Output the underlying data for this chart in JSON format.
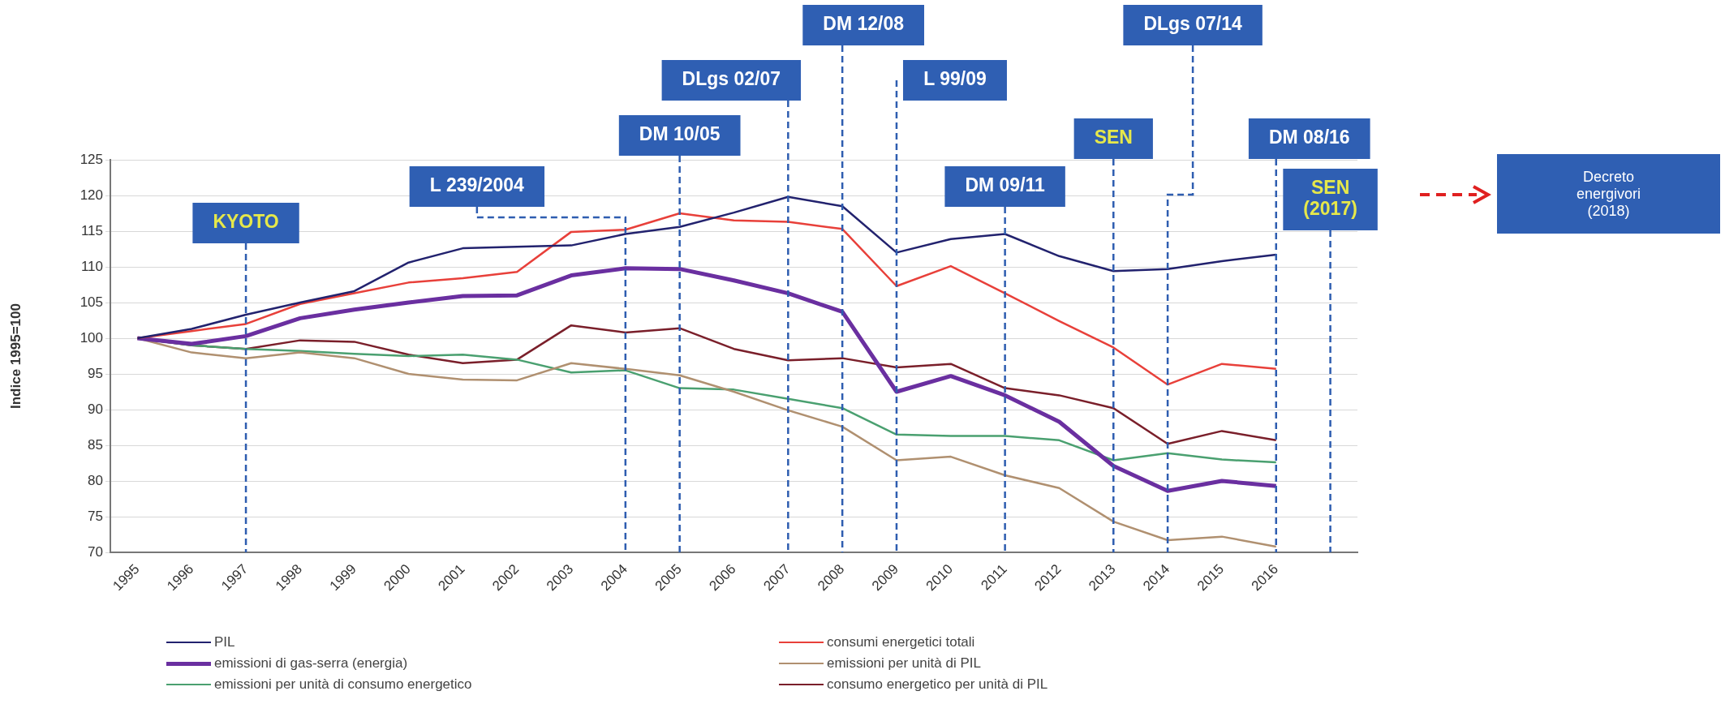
{
  "chart_data": {
    "type": "line",
    "ylabel": "Indice 1995=100",
    "x": [
      1995,
      1996,
      1997,
      1998,
      1999,
      2000,
      2001,
      2002,
      2003,
      2004,
      2005,
      2006,
      2007,
      2008,
      2009,
      2010,
      2011,
      2012,
      2013,
      2014,
      2015,
      2016
    ],
    "series": [
      {
        "name": "PIL",
        "color": "#22226e",
        "values": [
          100,
          101.3,
          103.3,
          105,
          106.6,
          110.6,
          112.6,
          112.8,
          113,
          114.6,
          115.6,
          117.6,
          119.8,
          118.5,
          112,
          113.9,
          114.6,
          111.5,
          109.4,
          109.7,
          110.8,
          111.7
        ]
      },
      {
        "name": "consumi energetici totali",
        "color": "#e8403a",
        "values": [
          100,
          101,
          102,
          104.8,
          106.3,
          107.8,
          108.4,
          109.3,
          114.9,
          115.2,
          117.5,
          116.5,
          116.3,
          115.3,
          107.3,
          110.1,
          106.3,
          102.4,
          98.7,
          93.5,
          96.4,
          95.7
        ]
      },
      {
        "name": "emissioni di gas-serra (energia)",
        "color": "#6a2fa0",
        "values": [
          100,
          99.2,
          100.3,
          102.8,
          104,
          105,
          105.9,
          106,
          108.8,
          109.8,
          109.7,
          108.1,
          106.3,
          103.7,
          92.5,
          94.7,
          92,
          88.3,
          82.1,
          78.6,
          80,
          79.3
        ]
      },
      {
        "name": "emissioni per unità di PIL",
        "color": "#b09070",
        "values": [
          100,
          98,
          97.2,
          98,
          97.2,
          95,
          94.2,
          94.1,
          96.5,
          95.7,
          94.8,
          92.5,
          89.9,
          87.6,
          82.9,
          83.4,
          80.8,
          79,
          74.3,
          71.7,
          72.2,
          70.8
        ]
      },
      {
        "name": "emissioni per unità di consumo energetico",
        "color": "#4aa070",
        "values": [
          100,
          99,
          98.5,
          98.2,
          97.8,
          97.5,
          97.7,
          97,
          95.2,
          95.5,
          93,
          92.8,
          91.5,
          90.2,
          86.5,
          86.3,
          86.3,
          85.7,
          82.9,
          83.9,
          83,
          82.6
        ]
      },
      {
        "name": "consumo energetico per unità di PIL",
        "color": "#7a1f2a",
        "values": [
          100,
          99,
          98.5,
          99.7,
          99.5,
          97.7,
          96.5,
          97,
          101.8,
          100.8,
          101.4,
          98.5,
          96.9,
          97.2,
          95.9,
          96.4,
          93,
          92,
          90.2,
          85.2,
          87,
          85.7
        ]
      }
    ],
    "xlim": [
      1994.5,
      2017.5
    ],
    "xticks": [
      1995,
      1996,
      1997,
      1998,
      1999,
      2000,
      2001,
      2002,
      2003,
      2004,
      2005,
      2006,
      2007,
      2008,
      2009,
      2010,
      2011,
      2012,
      2013,
      2014,
      2015,
      2016
    ],
    "ylim": [
      70,
      125
    ],
    "yticks": [
      70,
      75,
      80,
      85,
      90,
      95,
      100,
      105,
      110,
      115,
      120,
      125
    ],
    "grid": "y",
    "legend": "bottom",
    "marker": "none",
    "line_style": "solid",
    "ref_lines": [
      {
        "axis": "x",
        "value": 1997,
        "label": "KYOTO",
        "color": "#2e5db0",
        "line_style": "dashed"
      },
      {
        "axis": "x",
        "value": 2004,
        "label": "L 239/2004",
        "color": "#2e5db0",
        "line_style": "dashed"
      },
      {
        "axis": "x",
        "value": 2005,
        "label": "DM 10/05",
        "color": "#2e5db0",
        "line_style": "dashed"
      },
      {
        "axis": "x",
        "value": 2007,
        "label": "DLgs 02/07",
        "color": "#2e5db0",
        "line_style": "dashed"
      },
      {
        "axis": "x",
        "value": 2008,
        "label": "DM 12/08",
        "color": "#2e5db0",
        "line_style": "dashed"
      },
      {
        "axis": "x",
        "value": 2009,
        "label": "L 99/09",
        "color": "#2e5db0",
        "line_style": "dashed"
      },
      {
        "axis": "x",
        "value": 2011,
        "label": "DM 09/11",
        "color": "#2e5db0",
        "line_style": "dashed"
      },
      {
        "axis": "x",
        "value": 2013,
        "label": "SEN",
        "color": "#2e5db0",
        "line_style": "dashed"
      },
      {
        "axis": "x",
        "value": 2014,
        "label": "DLgs 07/14",
        "color": "#2e5db0",
        "line_style": "dashed"
      },
      {
        "axis": "x",
        "value": 2016,
        "label": "DM 08/16",
        "color": "#2e5db0",
        "line_style": "dashed"
      },
      {
        "axis": "x",
        "value": 2017,
        "label": "SEN (2017)",
        "color": "#2e5db0",
        "line_style": "dashed"
      }
    ],
    "annotations": [
      "Decreto energivori (2018)"
    ]
  }
}
